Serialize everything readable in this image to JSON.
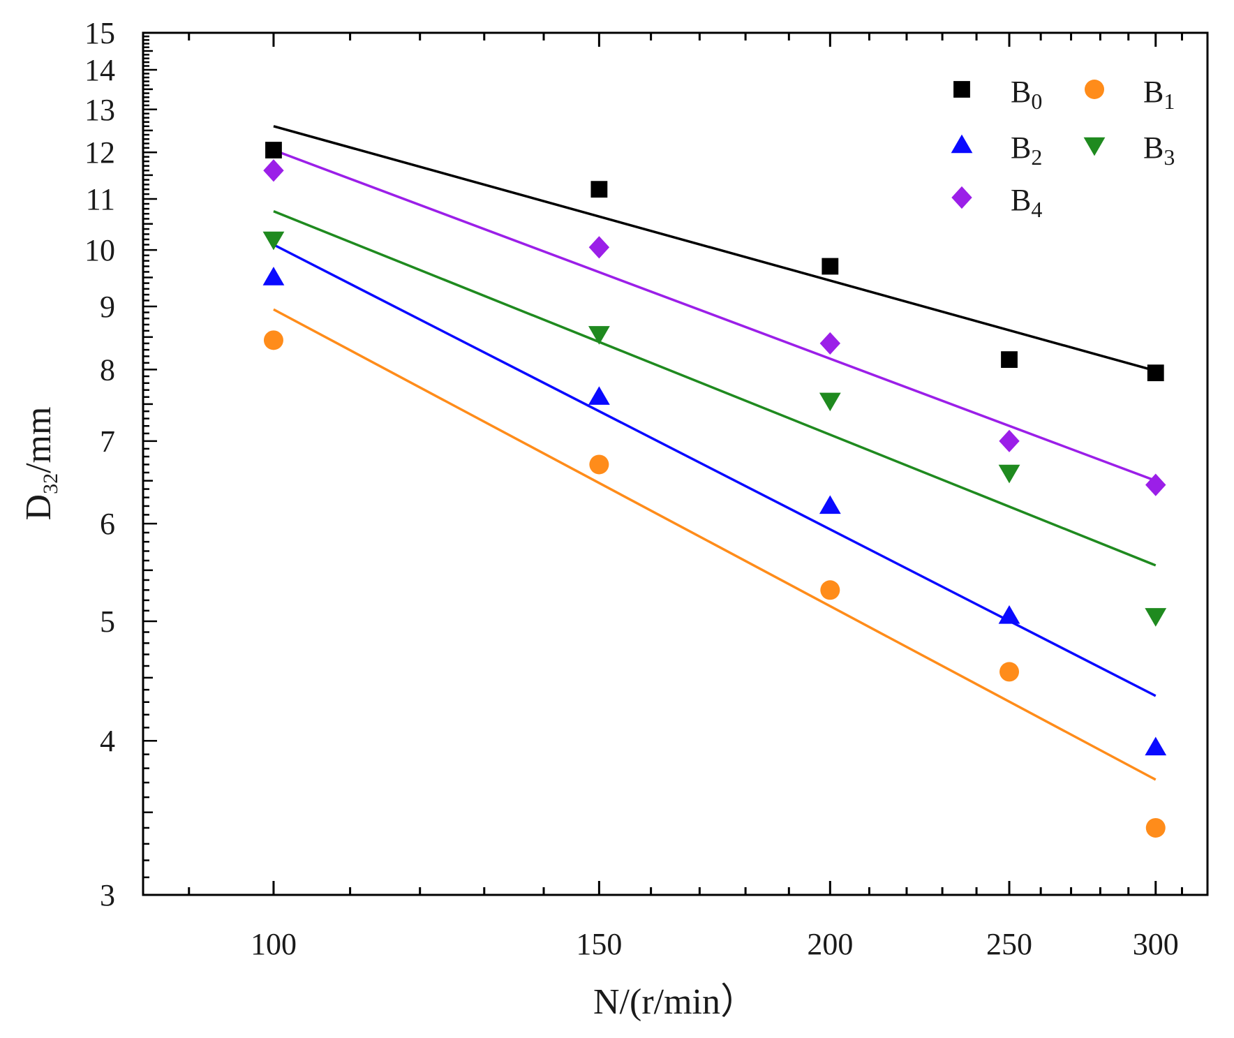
{
  "chart_data": {
    "type": "scatter",
    "title": "",
    "xlabel": "N/(r/min）",
    "ylabel": {
      "main": "D",
      "sub": "32",
      "suffix": "/mm"
    },
    "x_scale": "log",
    "y_scale": "log",
    "xlim": [
      85,
      320
    ],
    "ylim": [
      3,
      15
    ],
    "x_ticks": [
      100,
      150,
      200,
      250,
      300
    ],
    "x_tick_labels": [
      "100",
      "150",
      "200",
      "250",
      "300"
    ],
    "y_ticks": [
      3,
      4,
      5,
      6,
      7,
      8,
      9,
      10,
      11,
      12,
      13,
      14,
      15
    ],
    "y_tick_labels": [
      "3",
      "4",
      "5",
      "6",
      "7",
      "8",
      "9",
      "10",
      "11",
      "12",
      "13",
      "14",
      "15"
    ],
    "legend_position": "top-right",
    "series": [
      {
        "name": "B0",
        "label_main": "B",
        "label_sub": "0",
        "marker": "square",
        "color": "#000000",
        "x": [
          100,
          150,
          200,
          250,
          300
        ],
        "y": [
          12.05,
          11.2,
          9.7,
          8.15,
          7.95
        ],
        "fit": {
          "x": [
            100,
            300
          ],
          "y": [
            12.6,
            7.98
          ]
        }
      },
      {
        "name": "B1",
        "label_main": "B",
        "label_sub": "1",
        "marker": "circle",
        "color": "#ff8c1a",
        "x": [
          100,
          150,
          200,
          250,
          300
        ],
        "y": [
          8.45,
          6.7,
          5.3,
          4.55,
          3.4
        ],
        "fit": {
          "x": [
            100,
            300
          ],
          "y": [
            8.95,
            3.72
          ]
        }
      },
      {
        "name": "B2",
        "label_main": "B",
        "label_sub": "2",
        "marker": "triangle-up",
        "color": "#0a0aff",
        "x": [
          100,
          150,
          200,
          250,
          300
        ],
        "y": [
          9.5,
          7.6,
          6.2,
          5.05,
          3.95
        ],
        "fit": {
          "x": [
            100,
            300
          ],
          "y": [
            10.1,
            4.35
          ]
        }
      },
      {
        "name": "B3",
        "label_main": "B",
        "label_sub": "3",
        "marker": "triangle-down",
        "color": "#1f8a1f",
        "x": [
          100,
          150,
          200,
          250,
          300
        ],
        "y": [
          10.2,
          8.55,
          7.55,
          6.6,
          5.05
        ],
        "fit": {
          "x": [
            100,
            300
          ],
          "y": [
            10.75,
            5.55
          ]
        }
      },
      {
        "name": "B4",
        "label_main": "B",
        "label_sub": "4",
        "marker": "diamond",
        "color": "#9b1fe8",
        "x": [
          100,
          150,
          200,
          250,
          300
        ],
        "y": [
          11.6,
          10.05,
          8.4,
          7.0,
          6.45
        ],
        "fit": {
          "x": [
            100,
            300
          ],
          "y": [
            12.05,
            6.5
          ]
        }
      }
    ]
  }
}
